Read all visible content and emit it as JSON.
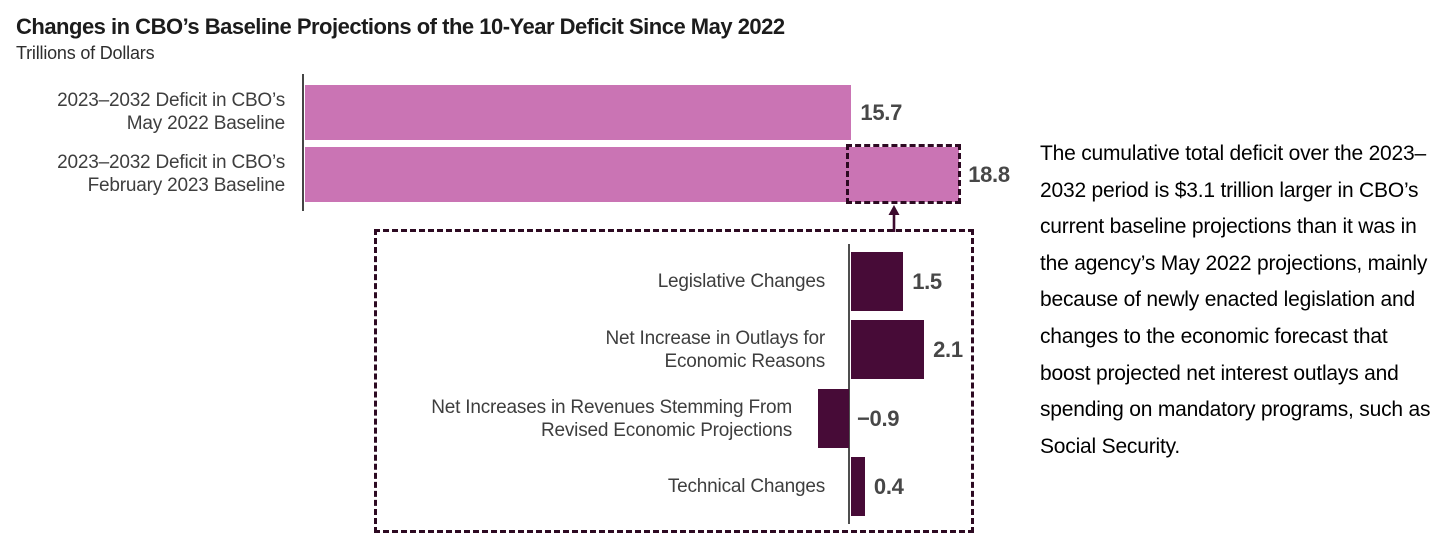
{
  "header": {
    "title": "Changes in CBO’s Baseline Projections of the 10-Year Deficit Since May 2022",
    "subtitle": "Trillions of Dollars"
  },
  "top_chart": {
    "rows": [
      {
        "label_line1": "2023–2032 Deficit in CBO’s",
        "label_line2": "May 2022 Baseline",
        "value_label": "15.7"
      },
      {
        "label_line1": "2023–2032 Deficit in CBO’s",
        "label_line2": "February 2023 Baseline",
        "value_label": "18.8"
      }
    ]
  },
  "breakdown_chart": {
    "rows": [
      {
        "label_line1": "Legislative Changes",
        "label_line2": "",
        "value_label": "1.5"
      },
      {
        "label_line1": "Net Increase in Outlays for",
        "label_line2": "Economic Reasons",
        "value_label": "2.1"
      },
      {
        "label_line1": "Net Increases in Revenues Stemming From",
        "label_line2": "Revised Economic Projections",
        "value_label": "−0.9"
      },
      {
        "label_line1": "Technical Changes",
        "label_line2": "",
        "value_label": "0.4"
      }
    ]
  },
  "annotation": {
    "text": "The cumulative total deficit over the 2023–2032 period is $3.1 trillion larger in CBO’s current baseline projections than it was in the agency’s May 2022 projections, mainly because of newly enacted legislation and changes to the economic forecast that boost projected net interest outlays and spending on mandatory programs, such as Social Security."
  },
  "colors": {
    "bar_pink": "#ca74b4",
    "bar_plum": "#470b37",
    "dashed_outline": "#2d0a22",
    "axis": "#454545",
    "value_text": "#474747",
    "label_text": "#3e3e3e",
    "title_text": "#1c1c1c",
    "body_text": "#000000"
  },
  "chart_data": [
    {
      "type": "bar",
      "orientation": "horizontal",
      "title": "Changes in CBO’s Baseline Projections of the 10-Year Deficit Since May 2022",
      "units_label": "Trillions of Dollars",
      "categories": [
        "2023–2032 Deficit in CBO’s May 2022 Baseline",
        "2023–2032 Deficit in CBO’s February 2023 Baseline"
      ],
      "values": [
        15.7,
        18.8
      ],
      "xlim": [
        0,
        19
      ],
      "bar_color": "#ca74b4",
      "highlight": {
        "from": 15.7,
        "to": 18.8,
        "style": "dashed-box",
        "difference": 3.1
      }
    },
    {
      "type": "bar",
      "orientation": "horizontal",
      "categories": [
        "Legislative Changes",
        "Net Increase in Outlays for Economic Reasons",
        "Net Increases in Revenues Stemming From Revised Economic Projections",
        "Technical Changes"
      ],
      "values": [
        1.5,
        2.1,
        -0.9,
        0.4
      ],
      "xlim": [
        -0.9,
        2.1
      ],
      "bar_color": "#470b37"
    }
  ]
}
